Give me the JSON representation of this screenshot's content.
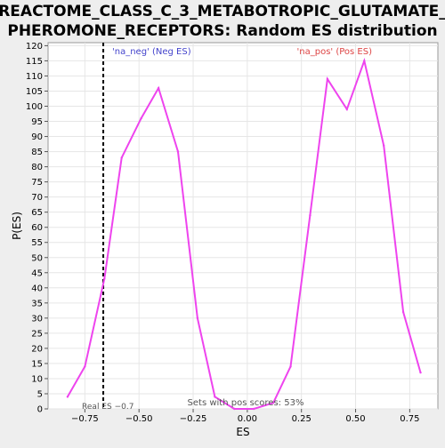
{
  "chart_data": {
    "type": "line",
    "title_lines": [
      "REACTOME_CLASS_C_3_METABOTROPIC_GLUTAMATE_",
      "PHEROMONE_RECEPTORS: Random ES distribution"
    ],
    "xlabel": "ES",
    "ylabel": "P(ES)",
    "xlim": [
      -0.92,
      0.88
    ],
    "ylim": [
      0,
      121
    ],
    "x_ticks": [
      -0.75,
      -0.5,
      -0.25,
      0.0,
      0.25,
      0.5,
      0.75
    ],
    "x_tick_labels": [
      "−0.75",
      "−0.50",
      "−0.25",
      "0.00",
      "0.25",
      "0.50",
      "0.75"
    ],
    "y_ticks": [
      0,
      5,
      10,
      15,
      20,
      25,
      30,
      35,
      40,
      45,
      50,
      55,
      60,
      65,
      70,
      75,
      80,
      85,
      90,
      95,
      100,
      105,
      110,
      115,
      120
    ],
    "grid": true,
    "series": [
      {
        "color": "#ee44ee",
        "x": [
          -0.83,
          -0.75,
          -0.66,
          -0.58,
          -0.49,
          -0.41,
          -0.32,
          -0.23,
          -0.15,
          -0.06,
          0.03,
          0.12,
          0.2,
          0.29,
          0.37,
          0.46,
          0.54,
          0.63,
          0.72,
          0.8
        ],
        "y": [
          4,
          14,
          43,
          83,
          96,
          106,
          85,
          30,
          4,
          0,
          0,
          2,
          14,
          64,
          109,
          99,
          115,
          87,
          32,
          12
        ]
      }
    ],
    "real_es": {
      "x": -0.665,
      "label": "Real ES −0.7"
    },
    "annotations": {
      "neg_label": "'na_neg' (Neg ES)",
      "pos_label": "'na_pos' (Pos ES)",
      "sets_label": "Sets with pos scores: 53%"
    },
    "colors": {
      "line": "#ee44ee",
      "neg_text": "#4444cc",
      "pos_text": "#dd4444",
      "real_es_line": "#000000",
      "grid": "#e6e6e6",
      "plot_bg": "#ffffff",
      "page_bg": "#eeeeee"
    }
  }
}
